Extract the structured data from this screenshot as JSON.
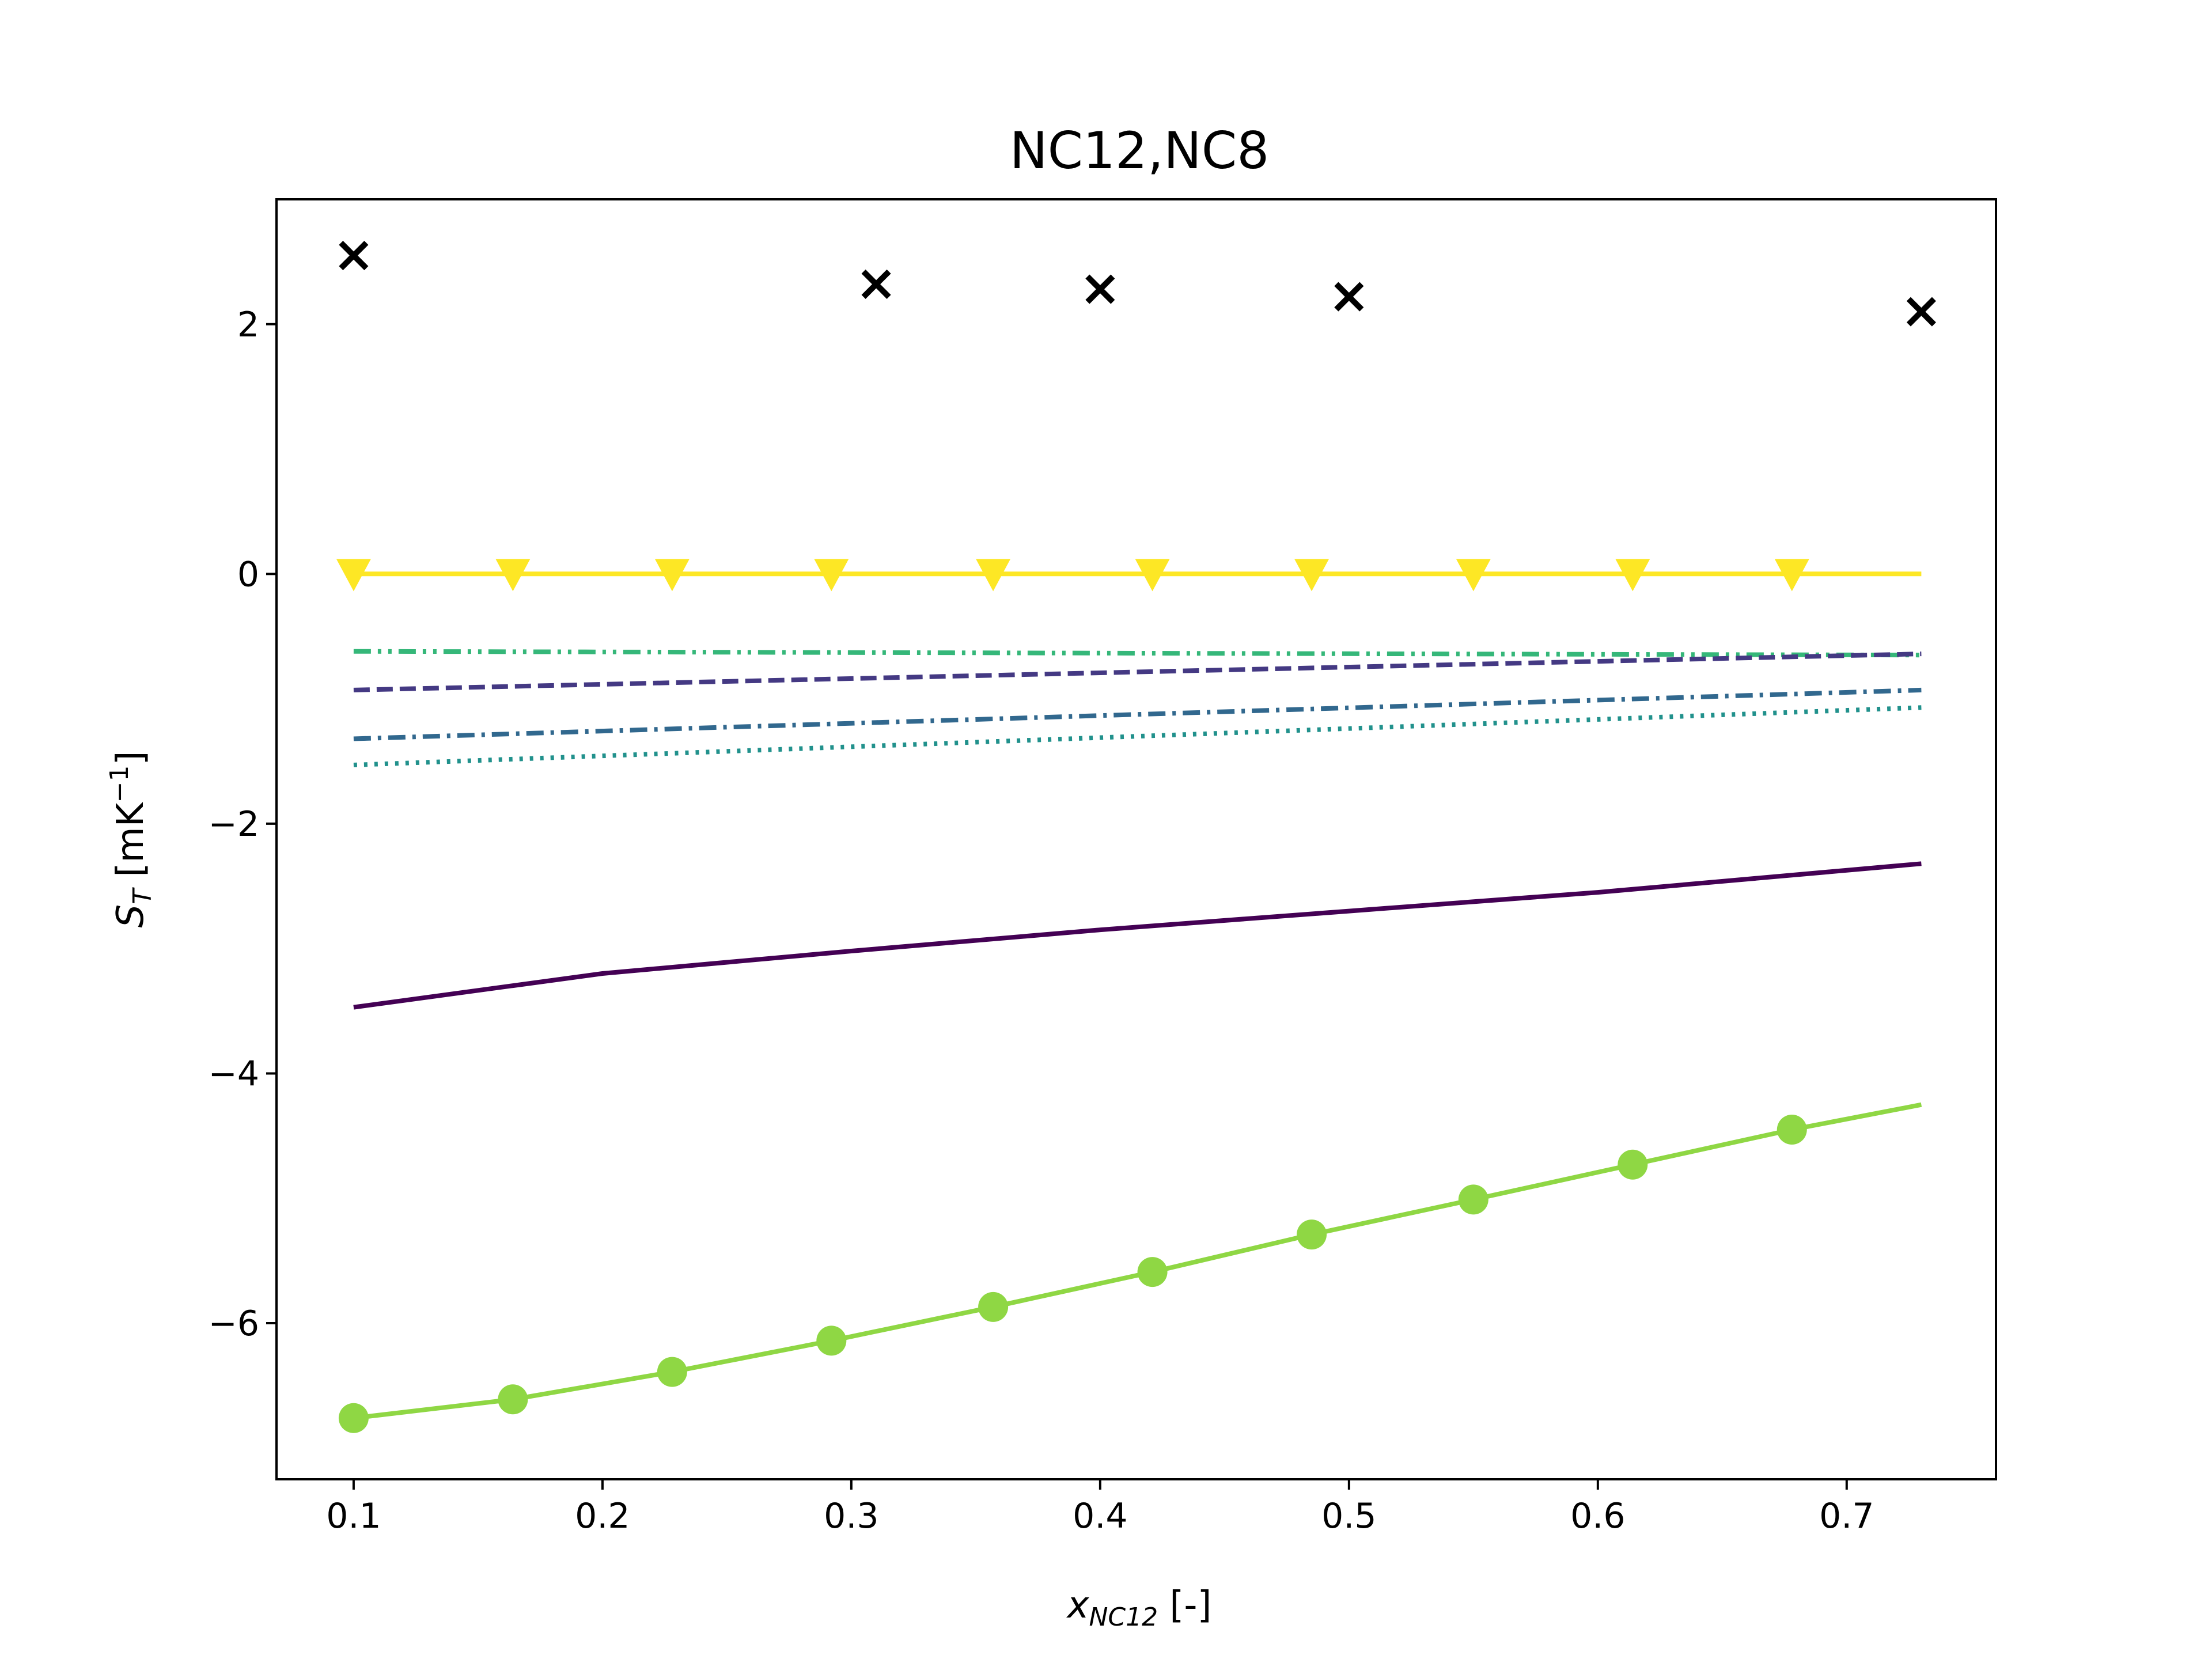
{
  "chart_data": {
    "type": "line",
    "title": "NC12,NC8",
    "xlabel": {
      "main": "x",
      "sub": "NC12",
      "unit": " [-]"
    },
    "ylabel": {
      "main": "S",
      "sub": "T",
      "unit_pre": " [mK",
      "unit_sup": "−1",
      "unit_post": "]"
    },
    "xlim": [
      0.069,
      0.76
    ],
    "ylim": [
      -7.25,
      3.0
    ],
    "xticks": [
      0.1,
      0.2,
      0.3,
      0.4,
      0.5,
      0.6,
      0.7
    ],
    "xtick_labels": [
      "0.1",
      "0.2",
      "0.3",
      "0.4",
      "0.5",
      "0.6",
      "0.7"
    ],
    "yticks": [
      -6,
      -4,
      -2,
      0,
      2
    ],
    "ytick_labels": [
      "−6",
      "−4",
      "−2",
      "0",
      "2"
    ],
    "grid": false,
    "legend": "none",
    "series": [
      {
        "kind": "scatter",
        "marker": "x",
        "color": "#000000",
        "x": [
          0.1,
          0.31,
          0.4,
          0.5,
          0.73
        ],
        "y": [
          2.55,
          2.32,
          2.28,
          2.22,
          2.1
        ]
      },
      {
        "kind": "line",
        "marker": "triangle-down",
        "color": "#fde725",
        "dash": "solid",
        "x": [
          0.1,
          0.73
        ],
        "y": [
          0.0,
          0.0
        ],
        "marker_x": [
          0.1,
          0.164,
          0.228,
          0.292,
          0.357,
          0.421,
          0.485,
          0.55,
          0.614,
          0.678
        ],
        "marker_y": [
          0,
          0,
          0,
          0,
          0,
          0,
          0,
          0,
          0,
          0
        ]
      },
      {
        "kind": "line",
        "color": "#35b779",
        "dash": "dashdotdot",
        "x": [
          0.1,
          0.73
        ],
        "y": [
          -0.62,
          -0.65
        ]
      },
      {
        "kind": "line",
        "color": "#443983",
        "dash": "dashed",
        "x": [
          0.1,
          0.73
        ],
        "y": [
          -0.93,
          -0.64
        ]
      },
      {
        "kind": "line",
        "color": "#31688e",
        "dash": "dashdot",
        "x": [
          0.1,
          0.73
        ],
        "y": [
          -1.32,
          -0.93
        ]
      },
      {
        "kind": "line",
        "color": "#21918c",
        "dash": "dotted",
        "x": [
          0.1,
          0.73
        ],
        "y": [
          -1.53,
          -1.07
        ]
      },
      {
        "kind": "line",
        "color": "#440154",
        "dash": "solid",
        "x": [
          0.1,
          0.2,
          0.3,
          0.4,
          0.5,
          0.6,
          0.73
        ],
        "y": [
          -3.47,
          -3.2,
          -3.02,
          -2.85,
          -2.7,
          -2.55,
          -2.32
        ]
      },
      {
        "kind": "line",
        "marker": "circle",
        "color": "#8fd744",
        "dash": "solid",
        "x": [
          0.1,
          0.164,
          0.228,
          0.292,
          0.357,
          0.421,
          0.485,
          0.55,
          0.614,
          0.678,
          0.73
        ],
        "y": [
          -6.76,
          -6.61,
          -6.39,
          -6.14,
          -5.87,
          -5.59,
          -5.29,
          -5.01,
          -4.73,
          -4.45,
          -4.25
        ],
        "marker_x": [
          0.1,
          0.164,
          0.228,
          0.292,
          0.357,
          0.421,
          0.485,
          0.55,
          0.614,
          0.678
        ],
        "marker_y": [
          -6.76,
          -6.61,
          -6.39,
          -6.14,
          -5.87,
          -5.59,
          -5.29,
          -5.01,
          -4.73,
          -4.45
        ]
      }
    ]
  }
}
